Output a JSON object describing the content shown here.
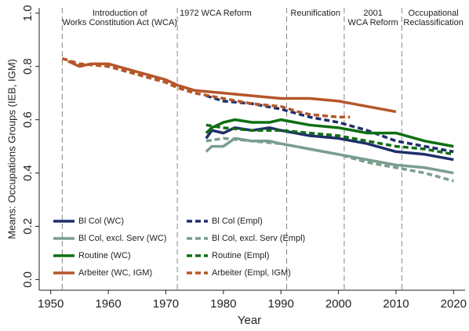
{
  "chart_data": {
    "type": "line",
    "x_label": "Year",
    "y_label": "Means: Occupations Groups (IEB, IGM)",
    "xlim": [
      1948,
      2022
    ],
    "ylim": [
      -0.04,
      1.02
    ],
    "xticks": [
      1950,
      1960,
      1970,
      1980,
      1990,
      2000,
      2010,
      2020
    ],
    "yticks": [
      {
        "value": 0,
        "label": "0.0"
      },
      0.2,
      0.4,
      0.6,
      0.8,
      {
        "value": 1,
        "label": "1.0"
      }
    ],
    "annotations": [
      {
        "x": 1952,
        "text": [
          "Introduction of",
          "Works Constitution Act (WCA)"
        ]
      },
      {
        "x": 1972,
        "text": [
          "1972 WCA Reform"
        ]
      },
      {
        "x": 1991,
        "text": [
          "Reunification"
        ]
      },
      {
        "x": 2001,
        "text": [
          "2001",
          "WCA Reform"
        ]
      },
      {
        "x": 2011,
        "text": [
          "Occupational",
          "Reclassification"
        ]
      }
    ],
    "series": [
      {
        "name": "Bl Col (WC)",
        "color": "#1f2f6b",
        "dashed": false,
        "x": [
          1977,
          1978,
          1980,
          1982,
          1985,
          1988,
          1990,
          1995,
          2000,
          2005,
          2010,
          2015,
          2020
        ],
        "values": [
          0.53,
          0.56,
          0.55,
          0.57,
          0.56,
          0.57,
          0.56,
          0.54,
          0.53,
          0.51,
          0.48,
          0.47,
          0.45
        ]
      },
      {
        "name": "Bl Col (Empl)",
        "color": "#1f2f6b",
        "dashed": true,
        "x": [
          1977,
          1980,
          1985,
          1990,
          1995,
          2000,
          2005,
          2010,
          2015,
          2020
        ],
        "values": [
          0.69,
          0.67,
          0.66,
          0.64,
          0.61,
          0.59,
          0.56,
          0.52,
          0.5,
          0.48
        ]
      },
      {
        "name": "Bl Col, excl. Serv (WC)",
        "color": "#7a9e8e",
        "dashed": false,
        "x": [
          1977,
          1978,
          1980,
          1982,
          1985,
          1988,
          1990,
          1995,
          2000,
          2005,
          2010,
          2015,
          2020
        ],
        "values": [
          0.48,
          0.5,
          0.5,
          0.53,
          0.52,
          0.52,
          0.51,
          0.49,
          0.47,
          0.45,
          0.43,
          0.42,
          0.4
        ]
      },
      {
        "name": "Bl Col, excl. Serv (Empl)",
        "color": "#7a9e8e",
        "dashed": true,
        "x": [
          1977,
          1980,
          1985,
          1990,
          1995,
          2000,
          2005,
          2010,
          2015,
          2020
        ],
        "values": [
          0.52,
          0.53,
          0.52,
          0.51,
          0.49,
          0.47,
          0.44,
          0.42,
          0.4,
          0.37
        ]
      },
      {
        "name": "Routine (WC)",
        "color": "#0f6e12",
        "dashed": false,
        "x": [
          1977,
          1978,
          1980,
          1982,
          1985,
          1988,
          1990,
          1995,
          2000,
          2005,
          2010,
          2015,
          2020
        ],
        "values": [
          0.55,
          0.57,
          0.59,
          0.6,
          0.59,
          0.59,
          0.6,
          0.58,
          0.57,
          0.55,
          0.55,
          0.52,
          0.5
        ]
      },
      {
        "name": "Routine (Empl)",
        "color": "#0f6e12",
        "dashed": true,
        "x": [
          1977,
          1980,
          1985,
          1990,
          1995,
          2000,
          2005,
          2010,
          2015,
          2020
        ],
        "values": [
          0.58,
          0.57,
          0.56,
          0.56,
          0.55,
          0.54,
          0.52,
          0.5,
          0.49,
          0.47
        ]
      },
      {
        "name": "Arbeiter (WC, IGM)",
        "color": "#b5562a",
        "dashed": false,
        "x": [
          1953,
          1955,
          1957,
          1960,
          1965,
          1970,
          1972,
          1975,
          1980,
          1985,
          1990,
          1995,
          2000,
          2005,
          2010
        ],
        "values": [
          0.82,
          0.8,
          0.81,
          0.81,
          0.78,
          0.75,
          0.73,
          0.71,
          0.7,
          0.69,
          0.68,
          0.68,
          0.67,
          0.65,
          0.63
        ]
      },
      {
        "name": "Arbeiter (Empl, IGM)",
        "color": "#b5562a",
        "dashed": true,
        "x": [
          1952,
          1955,
          1960,
          1965,
          1970,
          1972,
          1975,
          1980,
          1985,
          1990,
          1993,
          1995,
          2000,
          2002
        ],
        "values": [
          0.83,
          0.81,
          0.8,
          0.77,
          0.74,
          0.72,
          0.7,
          0.68,
          0.66,
          0.65,
          0.63,
          0.62,
          0.61,
          0.61
        ]
      }
    ]
  }
}
